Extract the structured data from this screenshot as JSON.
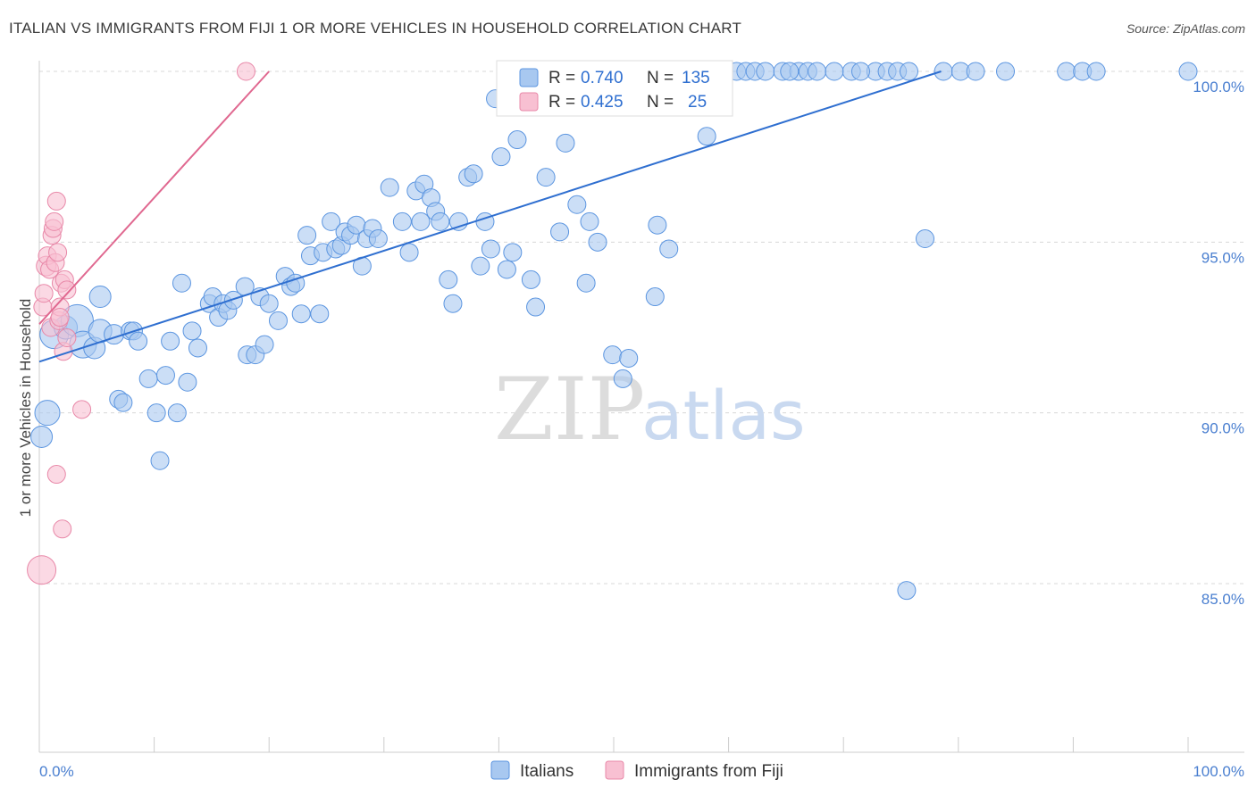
{
  "title": "ITALIAN VS IMMIGRANTS FROM FIJI 1 OR MORE VEHICLES IN HOUSEHOLD CORRELATION CHART",
  "source": "Source: ZipAtlas.com",
  "colors": {
    "blue_fill": "#a8c8f0",
    "blue_stroke": "#5b95e0",
    "blue_line": "#2f6fd0",
    "pink_fill": "#f8c0d2",
    "pink_stroke": "#e888a8",
    "pink_line": "#e06890",
    "tick_color": "#4a7fd0"
  },
  "legend_top": {
    "rows": [
      {
        "r_label": "R = ",
        "r_value": "0.740",
        "n_label": "N = ",
        "n_value": "135"
      },
      {
        "r_label": "R = ",
        "r_value": "0.425",
        "n_label": "N = ",
        "n_value": "25"
      }
    ]
  },
  "watermark": {
    "zip": "ZIP",
    "atlas": "atlas"
  },
  "chart_data": {
    "type": "scatter",
    "title": "ITALIAN VS IMMIGRANTS FROM FIJI 1 OR MORE VEHICLES IN HOUSEHOLD CORRELATION CHART",
    "xlabel": "",
    "ylabel": "1 or more Vehicles in Household",
    "xlim": [
      0,
      100
    ],
    "ylim": [
      80,
      100.5
    ],
    "x_tick_labels": [
      "0.0%",
      "100.0%"
    ],
    "y_ticks": [
      85,
      90,
      95,
      100
    ],
    "y_tick_labels": [
      "85.0%",
      "90.0%",
      "95.0%",
      "100.0%"
    ],
    "grid": true,
    "legend_position": "bottom",
    "series": [
      {
        "name": "Italians",
        "color": "#5b95e0",
        "trend": {
          "x": [
            0,
            78.5
          ],
          "y": [
            91.5,
            100
          ]
        },
        "points": [
          [
            0.2,
            89.3,
            12
          ],
          [
            0.7,
            90.0,
            14
          ],
          [
            1.3,
            92.3,
            16
          ],
          [
            2.3,
            92.5,
            13
          ],
          [
            3.3,
            92.7,
            18
          ],
          [
            3.8,
            92.0,
            15
          ],
          [
            4.8,
            91.9,
            12
          ],
          [
            5.3,
            92.4,
            13
          ],
          [
            5.3,
            93.4,
            12
          ],
          [
            6.5,
            92.3,
            11
          ],
          [
            7.9,
            92.4,
            10
          ],
          [
            8.2,
            92.4,
            10
          ],
          [
            6.9,
            90.4,
            10
          ],
          [
            7.3,
            90.3,
            10
          ],
          [
            8.6,
            92.1,
            10
          ],
          [
            9.5,
            91.0,
            10
          ],
          [
            10.2,
            90.0,
            10
          ],
          [
            10.5,
            88.6,
            10
          ],
          [
            11.0,
            91.1,
            10
          ],
          [
            11.4,
            92.1,
            10
          ],
          [
            12.0,
            90.0,
            10
          ],
          [
            12.4,
            93.8,
            10
          ],
          [
            12.9,
            90.9,
            10
          ],
          [
            13.3,
            92.4,
            10
          ],
          [
            13.8,
            91.9,
            10
          ],
          [
            14.8,
            93.2,
            10
          ],
          [
            15.1,
            93.4,
            10
          ],
          [
            15.6,
            92.8,
            10
          ],
          [
            16.0,
            93.2,
            10
          ],
          [
            16.4,
            93.0,
            10
          ],
          [
            16.9,
            93.3,
            10
          ],
          [
            17.9,
            93.7,
            10
          ],
          [
            18.1,
            91.7,
            10
          ],
          [
            18.8,
            91.7,
            10
          ],
          [
            19.2,
            93.4,
            10
          ],
          [
            19.6,
            92.0,
            10
          ],
          [
            20.0,
            93.2,
            10
          ],
          [
            20.8,
            92.7,
            10
          ],
          [
            21.4,
            94.0,
            10
          ],
          [
            21.9,
            93.7,
            10
          ],
          [
            22.3,
            93.8,
            10
          ],
          [
            22.8,
            92.9,
            10
          ],
          [
            23.3,
            95.2,
            10
          ],
          [
            23.6,
            94.6,
            10
          ],
          [
            24.4,
            92.9,
            10
          ],
          [
            24.7,
            94.7,
            10
          ],
          [
            25.4,
            95.6,
            10
          ],
          [
            25.8,
            94.8,
            10
          ],
          [
            26.3,
            94.9,
            10
          ],
          [
            26.6,
            95.3,
            10
          ],
          [
            27.1,
            95.2,
            10
          ],
          [
            27.6,
            95.5,
            10
          ],
          [
            28.1,
            94.3,
            10
          ],
          [
            28.5,
            95.1,
            10
          ],
          [
            29.0,
            95.4,
            10
          ],
          [
            29.5,
            95.1,
            10
          ],
          [
            30.5,
            96.6,
            10
          ],
          [
            31.6,
            95.6,
            10
          ],
          [
            32.2,
            94.7,
            10
          ],
          [
            32.8,
            96.5,
            10
          ],
          [
            33.2,
            95.6,
            10
          ],
          [
            33.5,
            96.7,
            10
          ],
          [
            34.1,
            96.3,
            10
          ],
          [
            34.5,
            95.9,
            10
          ],
          [
            34.9,
            95.6,
            10
          ],
          [
            35.6,
            93.9,
            10
          ],
          [
            36.0,
            93.2,
            10
          ],
          [
            36.5,
            95.6,
            10
          ],
          [
            37.3,
            96.9,
            10
          ],
          [
            37.8,
            97.0,
            10
          ],
          [
            38.4,
            94.3,
            10
          ],
          [
            38.8,
            95.6,
            10
          ],
          [
            39.3,
            94.8,
            10
          ],
          [
            39.7,
            99.2,
            10
          ],
          [
            40.2,
            97.5,
            10
          ],
          [
            40.7,
            94.2,
            10
          ],
          [
            41.2,
            94.7,
            10
          ],
          [
            41.6,
            98.0,
            10
          ],
          [
            42.6,
            100.0,
            10
          ],
          [
            42.8,
            93.9,
            10
          ],
          [
            43.2,
            93.1,
            10
          ],
          [
            44.1,
            96.9,
            10
          ],
          [
            44.7,
            100.0,
            10
          ],
          [
            45.3,
            95.3,
            10
          ],
          [
            45.8,
            97.9,
            10
          ],
          [
            46.1,
            100.0,
            10
          ],
          [
            46.8,
            96.1,
            10
          ],
          [
            47.6,
            93.8,
            10
          ],
          [
            47.9,
            95.6,
            10
          ],
          [
            48.6,
            95.0,
            10
          ],
          [
            49.0,
            100.0,
            10
          ],
          [
            49.9,
            91.7,
            10
          ],
          [
            50.8,
            91.0,
            10
          ],
          [
            51.3,
            91.6,
            10
          ],
          [
            51.8,
            100.0,
            10
          ],
          [
            52.8,
            100.0,
            10
          ],
          [
            53.6,
            93.4,
            10
          ],
          [
            53.8,
            95.5,
            10
          ],
          [
            54.4,
            100.0,
            10
          ],
          [
            54.8,
            94.8,
            10
          ],
          [
            55.6,
            100.0,
            10
          ],
          [
            56.5,
            99.4,
            10
          ],
          [
            57.5,
            100.0,
            10
          ],
          [
            58.1,
            98.1,
            10
          ],
          [
            58.6,
            100.0,
            10
          ],
          [
            59.3,
            100.0,
            10
          ],
          [
            60.7,
            100.0,
            10
          ],
          [
            61.5,
            100.0,
            10
          ],
          [
            62.3,
            100.0,
            10
          ],
          [
            63.2,
            100.0,
            10
          ],
          [
            64.7,
            100.0,
            10
          ],
          [
            66.1,
            100.0,
            10
          ],
          [
            66.9,
            100.0,
            10
          ],
          [
            67.7,
            100.0,
            10
          ],
          [
            70.7,
            100.0,
            10
          ],
          [
            72.8,
            100.0,
            10
          ],
          [
            73.8,
            100.0,
            10
          ],
          [
            74.7,
            100.0,
            10
          ],
          [
            75.5,
            84.8,
            10
          ],
          [
            75.7,
            100.0,
            10
          ],
          [
            77.1,
            95.1,
            10
          ],
          [
            78.7,
            100.0,
            10
          ],
          [
            80.2,
            100.0,
            10
          ],
          [
            81.5,
            100.0,
            10
          ],
          [
            84.1,
            100.0,
            10
          ],
          [
            89.4,
            100.0,
            10
          ],
          [
            90.8,
            100.0,
            10
          ],
          [
            92.0,
            100.0,
            10
          ],
          [
            100.0,
            100.0,
            10
          ],
          [
            43.5,
            100.0,
            10
          ],
          [
            50.3,
            100.0,
            10
          ],
          [
            57.1,
            100.0,
            10
          ],
          [
            65.3,
            100.0,
            10
          ],
          [
            69.2,
            100.0,
            10
          ],
          [
            71.5,
            100.0,
            10
          ]
        ]
      },
      {
        "name": "Immigrants from Fiji",
        "color": "#e888a8",
        "trend": {
          "x": [
            0,
            20
          ],
          "y": [
            92.6,
            100
          ]
        },
        "points": [
          [
            0.2,
            85.4,
            16
          ],
          [
            0.3,
            93.1,
            10
          ],
          [
            0.4,
            93.5,
            10
          ],
          [
            0.6,
            94.3,
            11
          ],
          [
            0.7,
            94.6,
            10
          ],
          [
            0.9,
            94.2,
            10
          ],
          [
            1.0,
            92.5,
            10
          ],
          [
            1.1,
            95.2,
            10
          ],
          [
            1.2,
            95.4,
            10
          ],
          [
            1.3,
            95.6,
            10
          ],
          [
            1.4,
            94.4,
            10
          ],
          [
            1.6,
            94.7,
            10
          ],
          [
            1.5,
            96.2,
            10
          ],
          [
            1.5,
            88.2,
            10
          ],
          [
            1.7,
            92.7,
            10
          ],
          [
            1.8,
            93.1,
            10
          ],
          [
            1.8,
            92.8,
            10
          ],
          [
            1.9,
            93.8,
            10
          ],
          [
            2.0,
            86.6,
            10
          ],
          [
            2.1,
            91.8,
            10
          ],
          [
            2.2,
            93.9,
            10
          ],
          [
            2.4,
            93.6,
            10
          ],
          [
            2.4,
            92.2,
            10
          ],
          [
            3.7,
            90.1,
            10
          ],
          [
            18.0,
            100.0,
            10
          ]
        ]
      }
    ]
  }
}
